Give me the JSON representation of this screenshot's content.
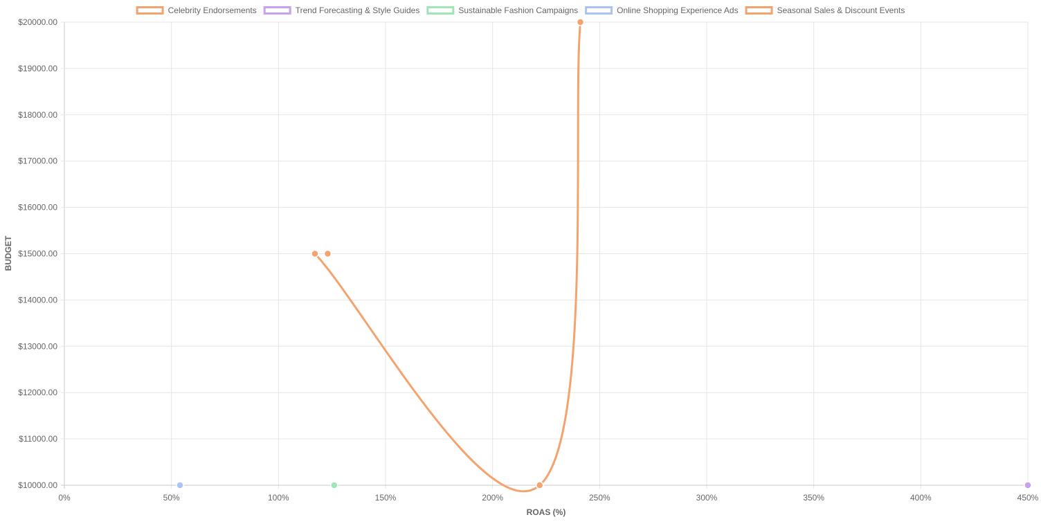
{
  "chart_data": {
    "type": "scatter",
    "xlabel": "ROAS (%)",
    "ylabel": "BUDGET",
    "xlim": [
      0,
      450
    ],
    "ylim": [
      10000,
      20000
    ],
    "x_ticks": [
      0,
      50,
      100,
      150,
      200,
      250,
      300,
      350,
      400,
      450
    ],
    "x_tick_labels": [
      "0%",
      "50%",
      "100%",
      "150%",
      "200%",
      "250%",
      "300%",
      "350%",
      "400%",
      "450%"
    ],
    "y_ticks": [
      10000,
      11000,
      12000,
      13000,
      14000,
      15000,
      16000,
      17000,
      18000,
      19000,
      20000
    ],
    "y_tick_labels": [
      "$10000.00",
      "$11000.00",
      "$12000.00",
      "$13000.00",
      "$14000.00",
      "$15000.00",
      "$16000.00",
      "$17000.00",
      "$18000.00",
      "$19000.00",
      "$20000.00"
    ],
    "grid": true,
    "legend_position": "top",
    "series": [
      {
        "name": "Celebrity Endorsements",
        "color": "#f4a36e",
        "line": false,
        "points": [
          [
            123,
            15000
          ]
        ]
      },
      {
        "name": "Trend Forecasting & Style Guides",
        "color": "#c9a0f0",
        "line": false,
        "points": [
          [
            450,
            10000
          ]
        ]
      },
      {
        "name": "Sustainable Fashion Campaigns",
        "color": "#9ee6b3",
        "line": false,
        "points": [
          [
            126,
            10000
          ]
        ]
      },
      {
        "name": "Online Shopping Experience Ads",
        "color": "#a9c3f5",
        "line": false,
        "points": [
          [
            54,
            10000
          ]
        ]
      },
      {
        "name": "Seasonal Sales & Discount Events",
        "color": "#f4a36e",
        "line": true,
        "points": [
          [
            117,
            15000
          ],
          [
            222,
            10000
          ],
          [
            241,
            20000
          ]
        ]
      }
    ]
  }
}
